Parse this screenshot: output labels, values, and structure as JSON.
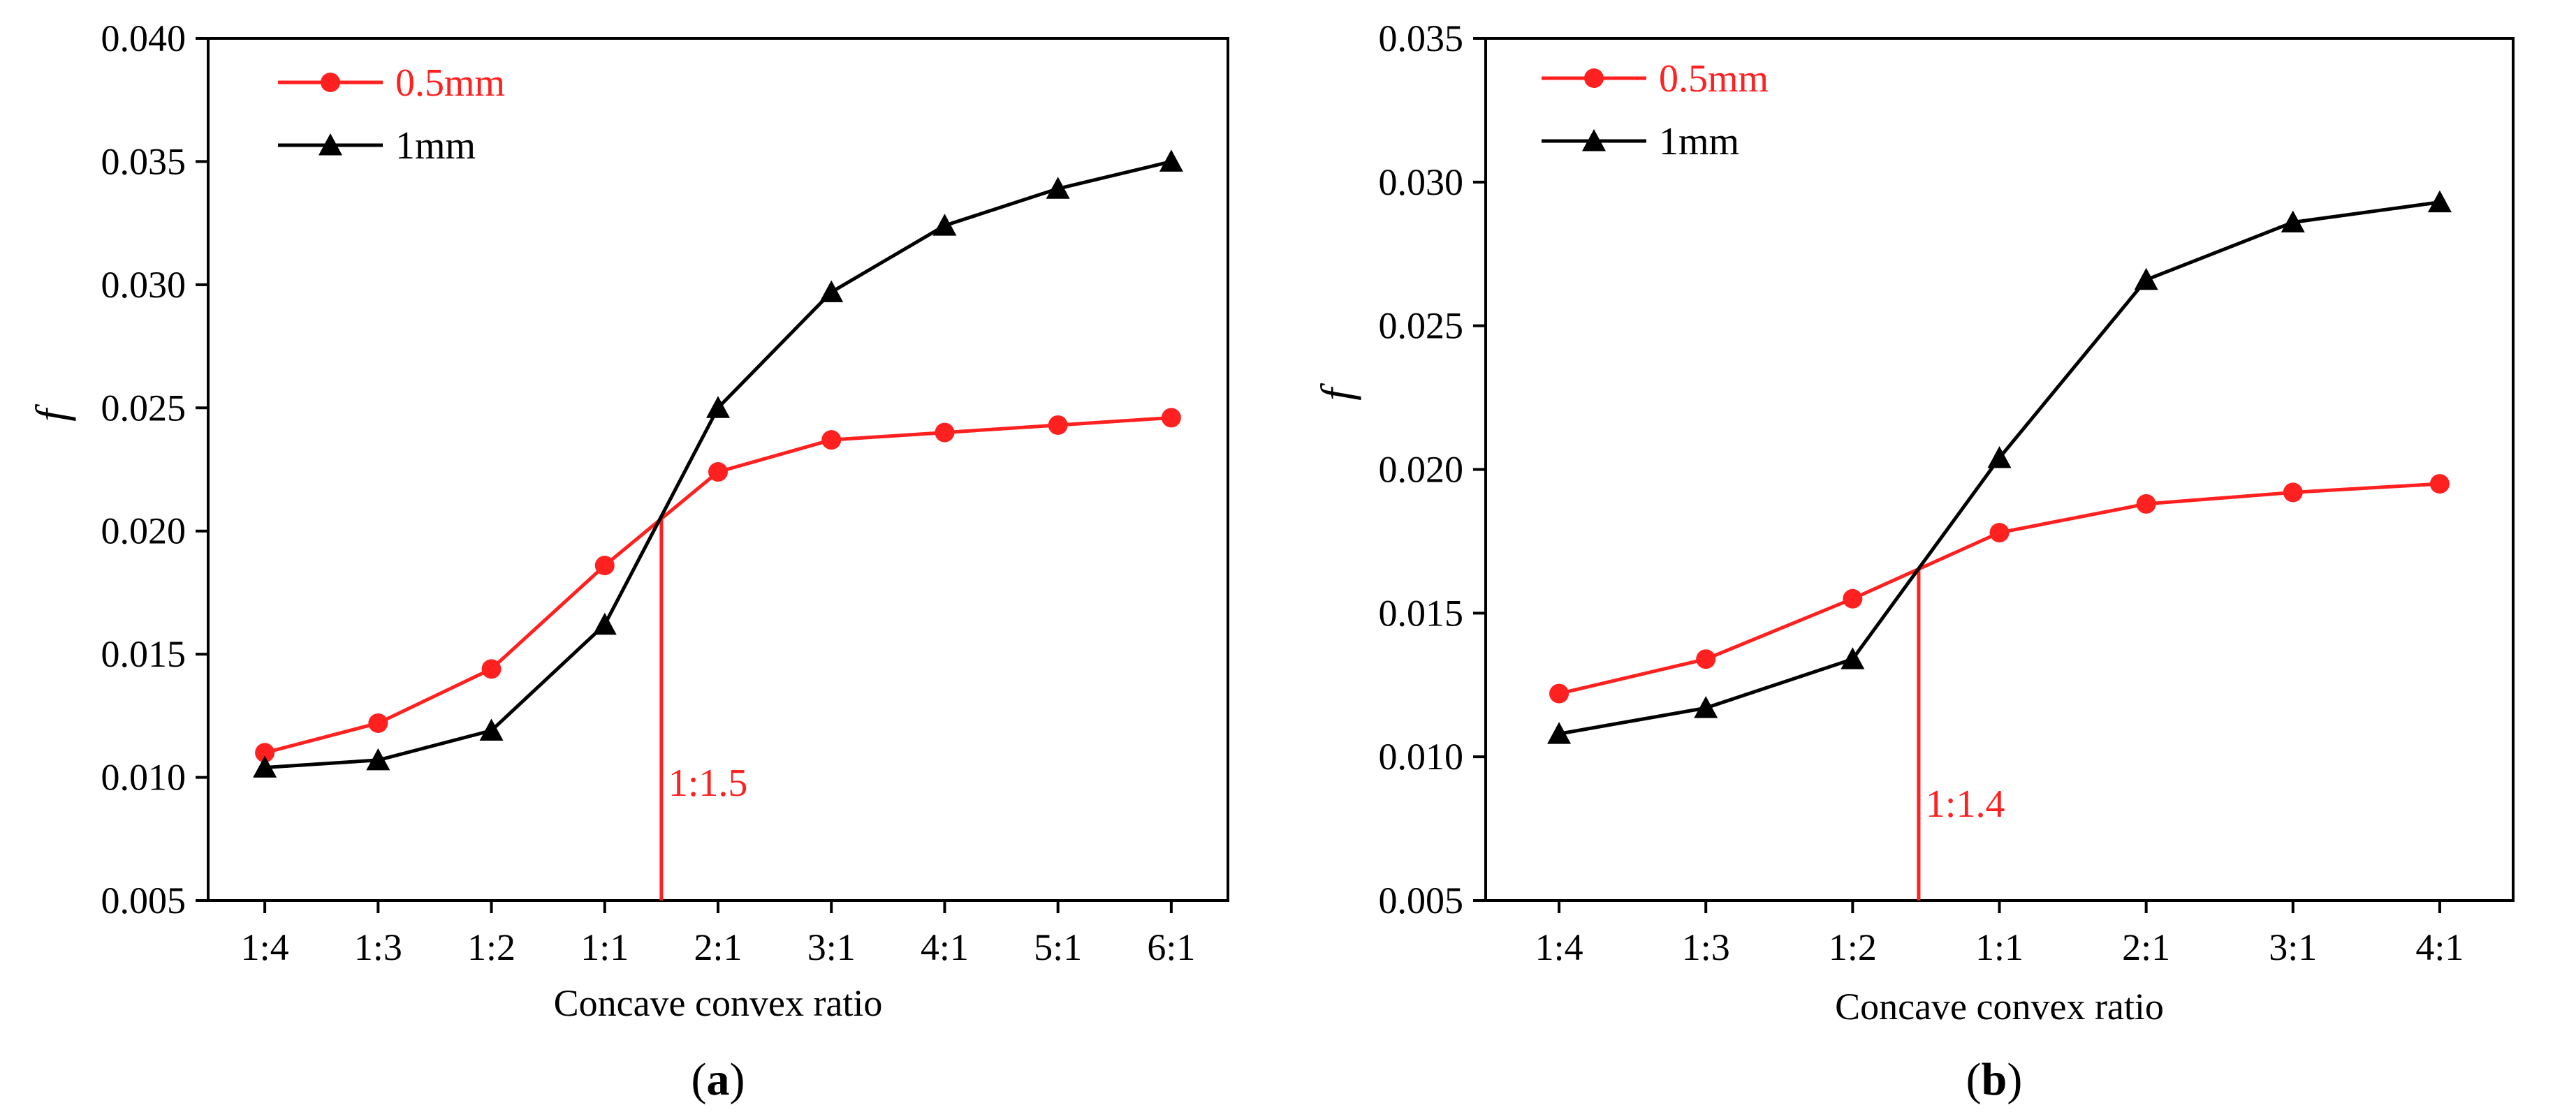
{
  "chart_data": [
    {
      "type": "line",
      "panel_label": "a",
      "xlabel": "Concave convex ratio",
      "ylabel": "f",
      "categories": [
        "1:4",
        "1:3",
        "1:2",
        "1:1",
        "2:1",
        "3:1",
        "4:1",
        "5:1",
        "6:1"
      ],
      "ylim": [
        0.005,
        0.04
      ],
      "yticks": [
        "0.005",
        "0.010",
        "0.015",
        "0.020",
        "0.025",
        "0.030",
        "0.035",
        "0.040"
      ],
      "legend_position": "top-left",
      "series": [
        {
          "name": "0.5mm",
          "color": "#ff2020",
          "marker": "circle",
          "values": [
            0.011,
            0.0122,
            0.0144,
            0.0186,
            0.0224,
            0.0237,
            0.024,
            0.0243,
            0.0246
          ]
        },
        {
          "name": "1mm",
          "color": "#000000",
          "marker": "triangle",
          "values": [
            0.0104,
            0.0107,
            0.0119,
            0.0162,
            0.025,
            0.0297,
            0.0324,
            0.0339,
            0.035
          ]
        }
      ],
      "annotation": {
        "label": "1:1.5",
        "x_index": 3.5,
        "y": 0.0205,
        "color": "#ff2020"
      }
    },
    {
      "type": "line",
      "panel_label": "b",
      "xlabel": "Concave convex ratio",
      "ylabel": "f",
      "categories": [
        "1:4",
        "1:3",
        "1:2",
        "1:1",
        "2:1",
        "3:1",
        "4:1"
      ],
      "ylim": [
        0.005,
        0.035
      ],
      "yticks": [
        "0.005",
        "0.010",
        "0.015",
        "0.020",
        "0.025",
        "0.030",
        "0.035"
      ],
      "legend_position": "top-left",
      "series": [
        {
          "name": "0.5mm",
          "color": "#ff2020",
          "marker": "circle",
          "values": [
            0.0122,
            0.0134,
            0.0155,
            0.0178,
            0.0188,
            0.0192,
            0.0195
          ]
        },
        {
          "name": "1mm",
          "color": "#000000",
          "marker": "triangle",
          "values": [
            0.0108,
            0.0117,
            0.0134,
            0.0204,
            0.0266,
            0.0286,
            0.0293
          ]
        }
      ],
      "annotation": {
        "label": "1:1.4",
        "x_index": 2.45,
        "y": 0.0165,
        "color": "#ff2020"
      }
    }
  ]
}
